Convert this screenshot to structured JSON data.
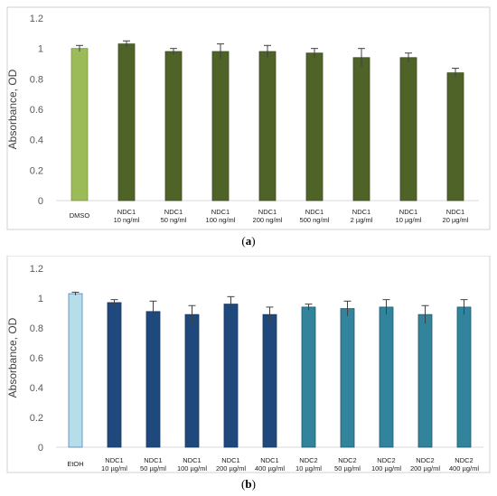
{
  "chart_data": [
    {
      "id": "a",
      "type": "bar",
      "caption_letter": "a",
      "ylabel": "Absorbance, OD",
      "ylim": [
        0,
        1.2
      ],
      "yticks": [
        "0",
        "0.2",
        "0.4",
        "0.6",
        "0.8",
        "1",
        "1.2"
      ],
      "categories": [
        [
          "DMSO"
        ],
        [
          "NDC1",
          "10 ng/ml"
        ],
        [
          "NDC1",
          "50 ng/ml"
        ],
        [
          "NDC1",
          "100 ng/ml"
        ],
        [
          "NDC1",
          "200 ng/ml"
        ],
        [
          "NDC1",
          "500 ng/ml"
        ],
        [
          "NDC1",
          "2 µg/ml"
        ],
        [
          "NDC1",
          "10 µg/ml"
        ],
        [
          "NDC1",
          "20 µg/ml"
        ]
      ],
      "values": [
        1.0,
        1.03,
        0.98,
        0.98,
        0.98,
        0.97,
        0.94,
        0.94,
        0.84
      ],
      "errors": [
        0.02,
        0.02,
        0.02,
        0.05,
        0.04,
        0.03,
        0.06,
        0.03,
        0.03
      ],
      "colors": [
        "#9bbb59",
        "#4f6228",
        "#4f6228",
        "#4f6228",
        "#4f6228",
        "#4f6228",
        "#4f6228",
        "#4f6228",
        "#4f6228"
      ],
      "edge_colors": [
        "#7a9a3c",
        "#3c4d1c",
        "#3c4d1c",
        "#3c4d1c",
        "#3c4d1c",
        "#3c4d1c",
        "#3c4d1c",
        "#3c4d1c",
        "#3c4d1c"
      ],
      "grid": false
    },
    {
      "id": "b",
      "type": "bar",
      "caption_letter": "b",
      "ylabel": "Absorbance, OD",
      "ylim": [
        0,
        1.2
      ],
      "yticks": [
        "0",
        "0.2",
        "0.4",
        "0.6",
        "0.8",
        "1",
        "1.2"
      ],
      "categories": [
        [
          "EtOH"
        ],
        [
          "NDC1",
          "10 µg/ml"
        ],
        [
          "NDC1",
          "50 µg/ml"
        ],
        [
          "NDC1",
          "100 µg/ml"
        ],
        [
          "NDC1",
          "200 µg/ml"
        ],
        [
          "NDC1",
          "400 µg/ml"
        ],
        [
          "NDC2",
          "10 µg/ml"
        ],
        [
          "NDC2",
          "50 µg/ml"
        ],
        [
          "NDC2",
          "100 µg/ml"
        ],
        [
          "NDC2",
          "200 µg/ml"
        ],
        [
          "NDC2",
          "400 µg/ml"
        ]
      ],
      "values": [
        1.03,
        0.97,
        0.91,
        0.89,
        0.96,
        0.89,
        0.94,
        0.93,
        0.94,
        0.89,
        0.94
      ],
      "errors": [
        0.01,
        0.02,
        0.07,
        0.06,
        0.05,
        0.05,
        0.02,
        0.05,
        0.05,
        0.06,
        0.05
      ],
      "colors": [
        "#b7dee8",
        "#1f497d",
        "#1f497d",
        "#1f497d",
        "#1f497d",
        "#1f497d",
        "#31849b",
        "#31849b",
        "#31849b",
        "#31849b",
        "#31849b"
      ],
      "edge_colors": [
        "#4f81bd",
        "#17375e",
        "#17375e",
        "#17375e",
        "#17375e",
        "#17375e",
        "#215968",
        "#215968",
        "#215968",
        "#215968",
        "#215968"
      ],
      "grid": false
    }
  ]
}
